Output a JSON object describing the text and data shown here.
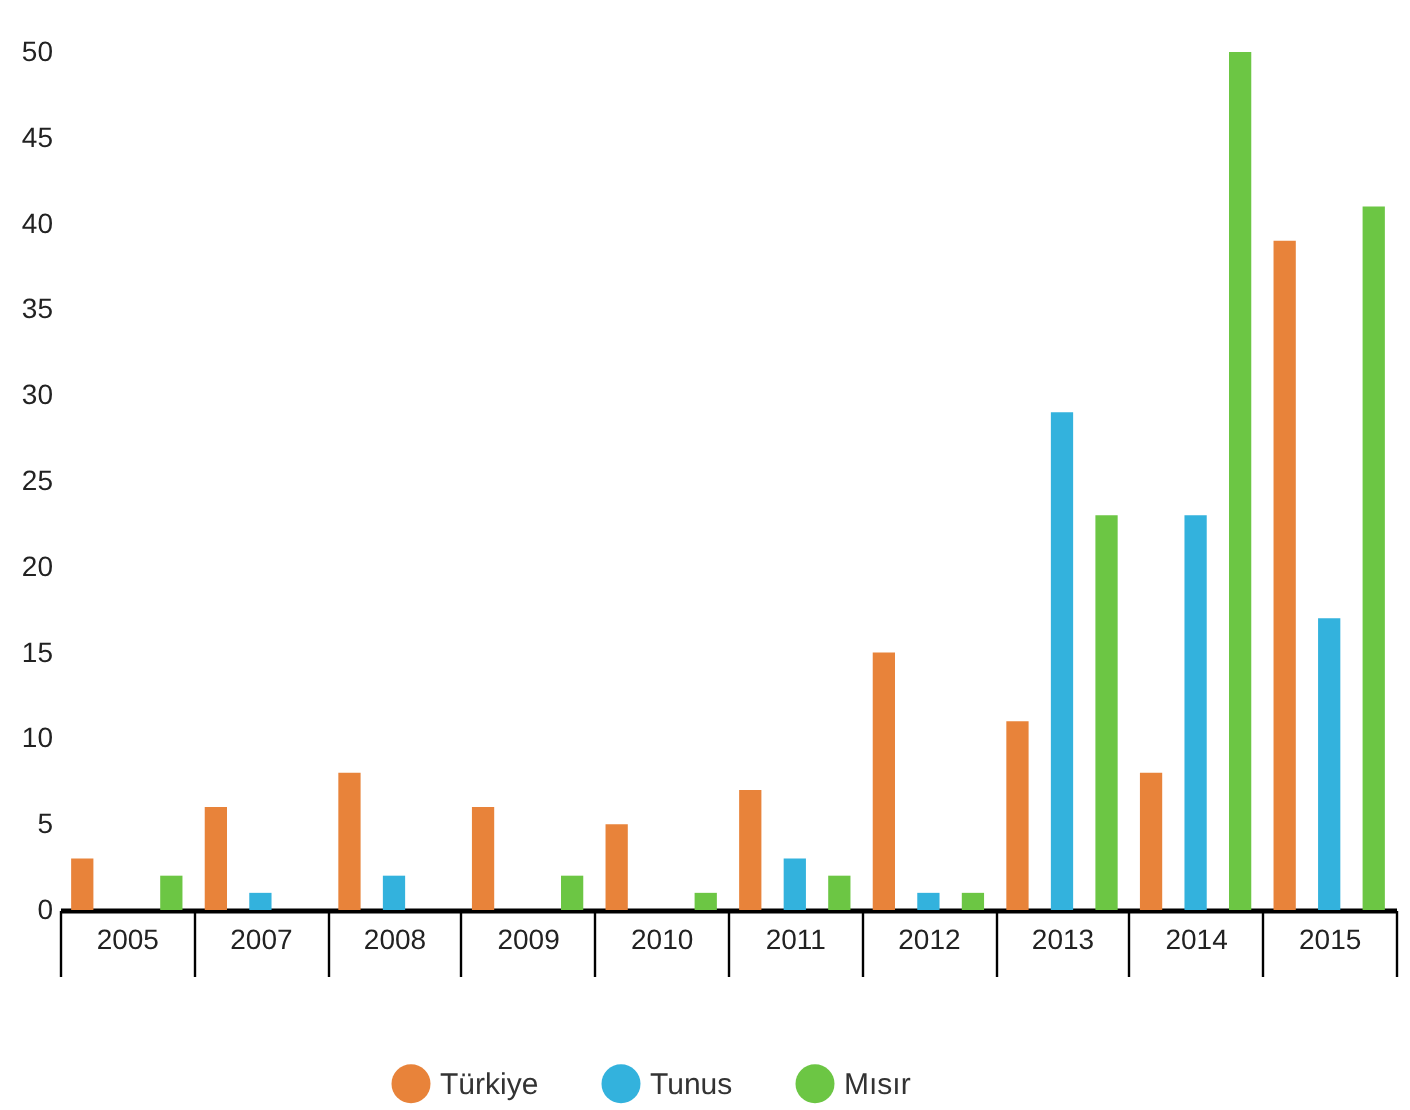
{
  "chart_data": {
    "type": "bar",
    "categories": [
      "2005",
      "2007",
      "2008",
      "2009",
      "2010",
      "2011",
      "2012",
      "2013",
      "2014",
      "2015"
    ],
    "series": [
      {
        "name": "Türkiye",
        "color": "#e8833a",
        "values": [
          3,
          6,
          8,
          6,
          5,
          7,
          15,
          11,
          8,
          39
        ]
      },
      {
        "name": "Tunus",
        "color": "#33b2dd",
        "values": [
          0,
          1,
          2,
          0,
          0,
          3,
          1,
          29,
          23,
          17
        ]
      },
      {
        "name": "Mısır",
        "color": "#6cc644",
        "values": [
          2,
          0,
          0,
          2,
          1,
          2,
          1,
          23,
          50,
          41
        ]
      }
    ],
    "ylim": [
      0,
      50
    ],
    "yticks": [
      0,
      5,
      10,
      15,
      20,
      25,
      30,
      35,
      40,
      45,
      50
    ],
    "grid": false,
    "legend": "bottom"
  }
}
